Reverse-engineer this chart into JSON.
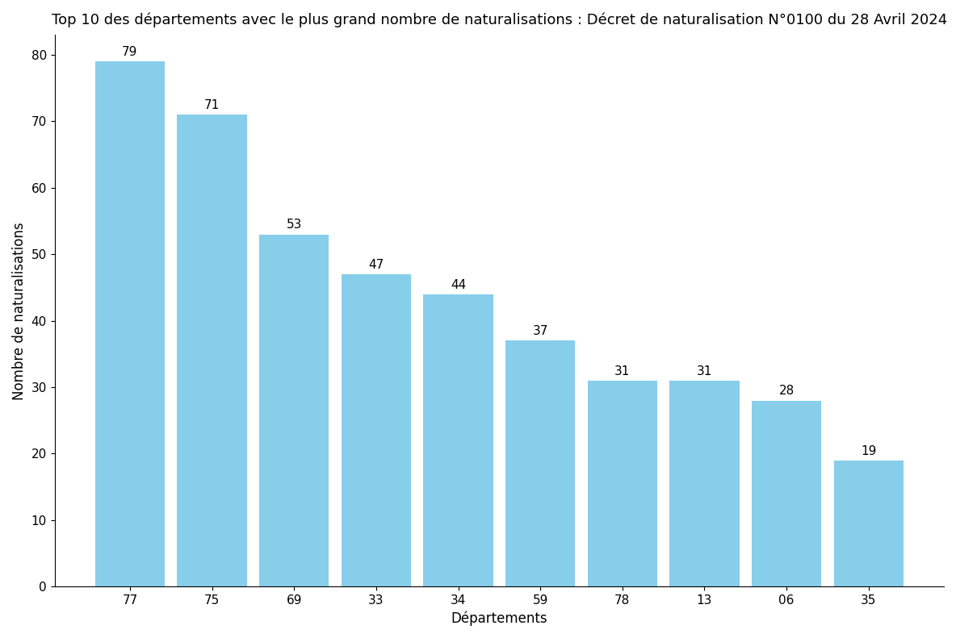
{
  "title": "Top 10 des départements avec le plus grand nombre de naturalisations : Décret de naturalisation N°0100 du 28 Avril 2024",
  "xlabel": "Départements",
  "ylabel": "Nombre de naturalisations",
  "categories": [
    "77",
    "75",
    "69",
    "33",
    "34",
    "59",
    "78",
    "13",
    "06",
    "35"
  ],
  "values": [
    79,
    71,
    53,
    47,
    44,
    37,
    31,
    31,
    28,
    19
  ],
  "bar_color": "#87CEEB",
  "ylim": [
    0,
    83
  ],
  "title_fontsize": 13,
  "label_fontsize": 12,
  "tick_fontsize": 11,
  "value_fontsize": 11,
  "bar_width": 0.85,
  "background_color": "#ffffff"
}
